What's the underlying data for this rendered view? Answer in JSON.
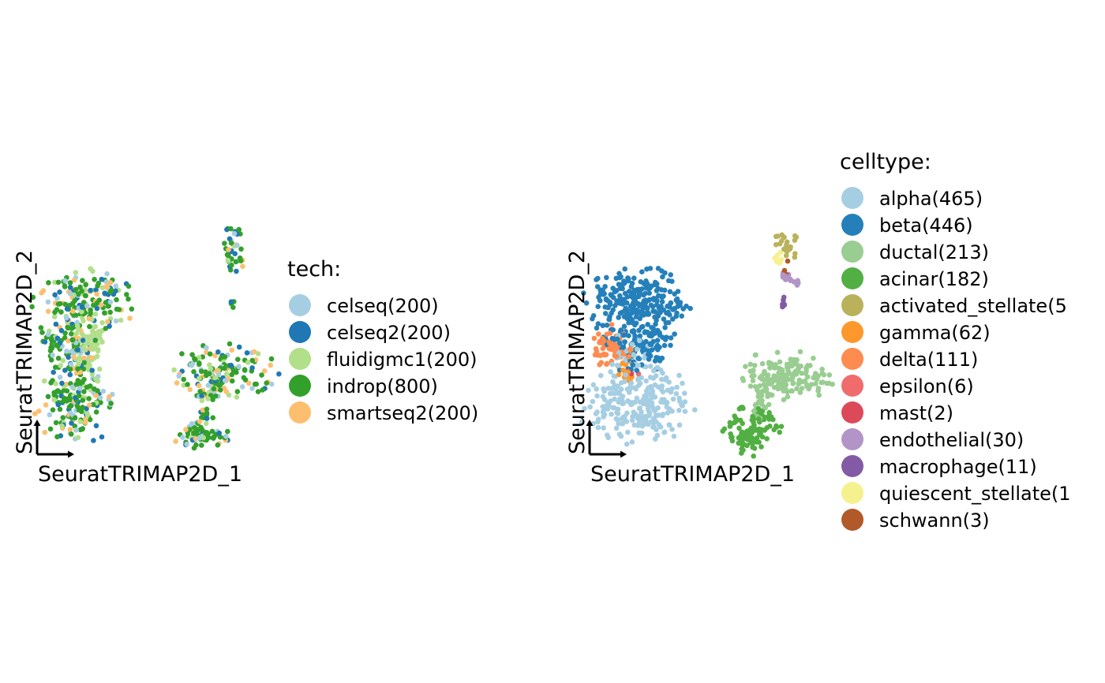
{
  "chart_data": [
    {
      "type": "scatter",
      "xlabel": "SeuratTRIMAP2D_1",
      "ylabel": "SeuratTRIMAP2D_2",
      "legend": {
        "title": "tech:",
        "placement": "right",
        "entries": [
          {
            "label": "celseq(200)",
            "color": "#A6CEE3"
          },
          {
            "label": "celseq2(200)",
            "color": "#1F78B4"
          },
          {
            "label": "fluidigmc1(200)",
            "color": "#B2DF8A"
          },
          {
            "label": "indrop(800)",
            "color": "#33A02C"
          },
          {
            "label": "smartseq2(200)",
            "color": "#FDBF6F"
          }
        ]
      },
      "series": [
        {
          "name": "celseq(200)",
          "count": 200,
          "color": "#A6CEE3"
        },
        {
          "name": "celseq2(200)",
          "count": 200,
          "color": "#1F78B4"
        },
        {
          "name": "fluidigmc1(200)",
          "count": 200,
          "color": "#B2DF8A"
        },
        {
          "name": "indrop(800)",
          "count": 800,
          "color": "#33A02C"
        },
        {
          "name": "smartseq2(200)",
          "count": 200,
          "color": "#FDBF6F"
        }
      ],
      "grid": false
    },
    {
      "type": "scatter",
      "xlabel": "SeuratTRIMAP2D_1",
      "ylabel": "SeuratTRIMAP2D_2",
      "legend": {
        "title": "celltype:",
        "placement": "right",
        "entries": [
          {
            "label": "alpha(465)",
            "color": "#A6CEE3"
          },
          {
            "label": "beta(446)",
            "color": "#2580BA"
          },
          {
            "label": "ductal(213)",
            "color": "#99CD91"
          },
          {
            "label": "acinar(182)",
            "color": "#52AF43"
          },
          {
            "label": "activated_stellate(5",
            "color": "#B9B25B"
          },
          {
            "label": "gamma(62)",
            "color": "#FE982C"
          },
          {
            "label": "delta(111)",
            "color": "#FE8B4F"
          },
          {
            "label": "epsilon(6)",
            "color": "#F06C6C"
          },
          {
            "label": "mast(2)",
            "color": "#DC4A5A"
          },
          {
            "label": "endothelial(30)",
            "color": "#B294C7"
          },
          {
            "label": "macrophage(11)",
            "color": "#825AA5"
          },
          {
            "label": "quiescent_stellate(1",
            "color": "#F6F18F"
          },
          {
            "label": "schwann(3)",
            "color": "#B15928"
          }
        ]
      },
      "series": [
        {
          "name": "alpha(465)",
          "count": 465,
          "color": "#A6CEE3"
        },
        {
          "name": "beta(446)",
          "count": 446,
          "color": "#2580BA"
        },
        {
          "name": "ductal(213)",
          "count": 213,
          "color": "#99CD91"
        },
        {
          "name": "acinar(182)",
          "count": 182,
          "color": "#52AF43"
        },
        {
          "name": "activated_stellate(5",
          "count": 5,
          "color": "#B9B25B"
        },
        {
          "name": "gamma(62)",
          "count": 62,
          "color": "#FE982C"
        },
        {
          "name": "delta(111)",
          "count": 111,
          "color": "#FE8B4F"
        },
        {
          "name": "epsilon(6)",
          "count": 6,
          "color": "#F06C6C"
        },
        {
          "name": "mast(2)",
          "count": 2,
          "color": "#DC4A5A"
        },
        {
          "name": "endothelial(30)",
          "count": 30,
          "color": "#B294C7"
        },
        {
          "name": "macrophage(11)",
          "count": 11,
          "color": "#825AA5"
        },
        {
          "name": "quiescent_stellate(1",
          "count": 1,
          "color": "#F6F18F"
        },
        {
          "name": "schwann(3)",
          "count": 3,
          "color": "#B15928"
        }
      ],
      "grid": false
    }
  ]
}
